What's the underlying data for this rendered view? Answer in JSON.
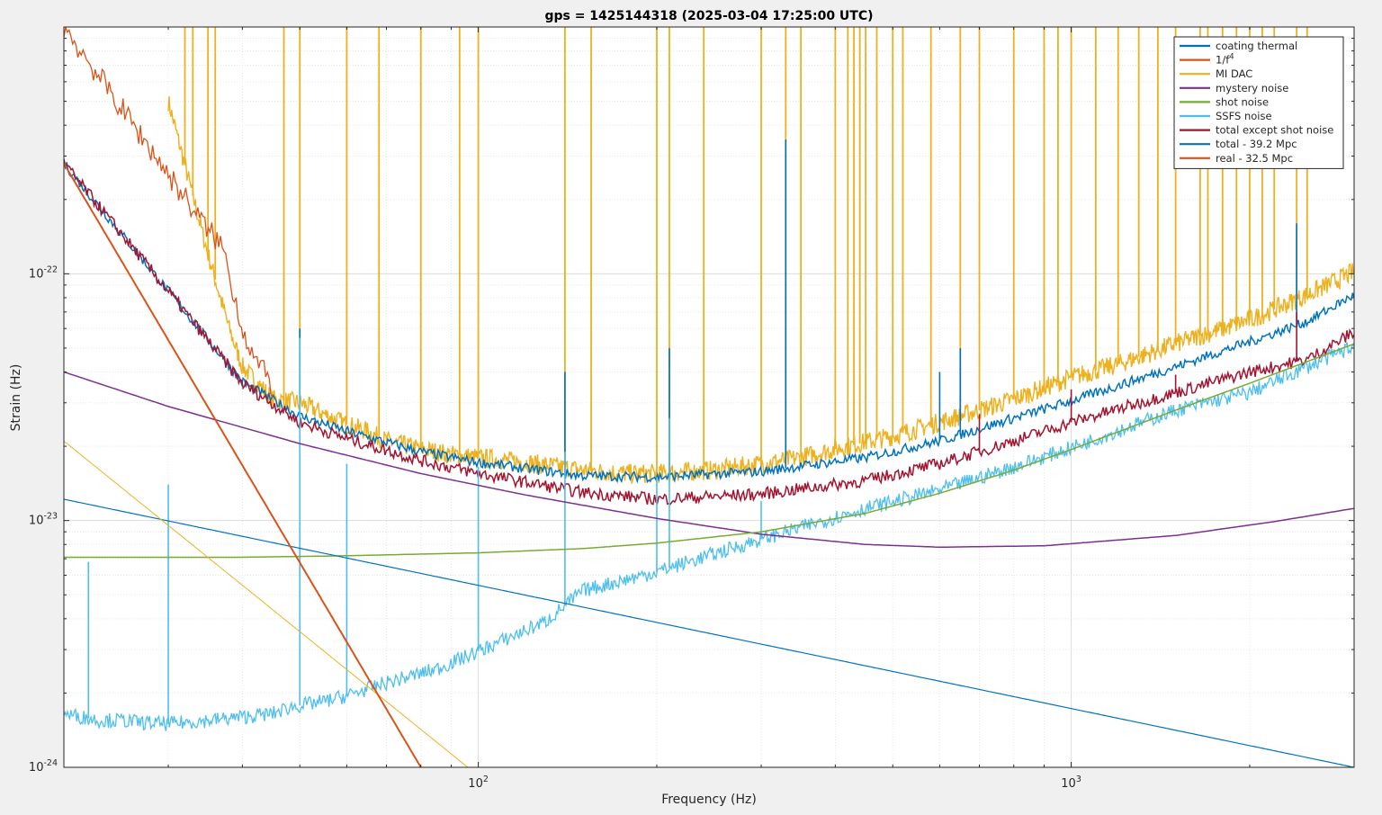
{
  "chart_data": {
    "type": "line",
    "title": "gps = 1425144318 (2025-03-04 17:25:00 UTC)",
    "xlabel": "Frequency (Hz)",
    "ylabel": "Strain (Hz)",
    "xscale": "log",
    "yscale": "log",
    "xlim": [
      20,
      3000
    ],
    "ylim": [
      1e-24,
      1e-21
    ],
    "grid": true,
    "legend_position": "top-right",
    "x_tick_labels": [
      {
        "value": 100,
        "base": "10",
        "exp": "2"
      },
      {
        "value": 1000,
        "base": "10",
        "exp": "3"
      }
    ],
    "y_tick_labels": [
      {
        "value": 1e-24,
        "base": "10",
        "exp": "-24"
      },
      {
        "value": 1e-23,
        "base": "10",
        "exp": "-23"
      },
      {
        "value": 1e-22,
        "base": "10",
        "exp": "-22"
      }
    ],
    "series": [
      {
        "name": "coating thermal",
        "color": "#0072BD",
        "width": 1.2,
        "x": [
          20,
          3000
        ],
        "y": [
          1.22e-23,
          1e-24
        ]
      },
      {
        "name": "1/f^4",
        "color": "#D95319",
        "width": 2,
        "x": [
          20,
          80
        ],
        "y": [
          2.8e-22,
          1e-24
        ]
      },
      {
        "name": "MI DAC",
        "color": "#EDB120",
        "width": 1,
        "x": [
          20,
          96
        ],
        "y": [
          2.1e-23,
          1e-24
        ]
      },
      {
        "name": "mystery noise",
        "color": "#7E2F8E",
        "width": 1.5,
        "x": [
          20,
          30,
          50,
          80,
          120,
          200,
          300,
          450,
          600,
          900,
          1500,
          2200,
          3000
        ],
        "y": [
          4e-23,
          2.9e-23,
          2.05e-23,
          1.55e-23,
          1.27e-23,
          1.02e-23,
          8.8e-24,
          8e-24,
          7.8e-24,
          7.9e-24,
          8.7e-24,
          9.9e-24,
          1.12e-23
        ]
      },
      {
        "name": "shot noise",
        "color": "#77AC30",
        "width": 1.5,
        "x": [
          20,
          40,
          60,
          100,
          150,
          200,
          300,
          450,
          600,
          800,
          1000,
          1500,
          2000,
          3000
        ],
        "y": [
          7.1e-24,
          7.1e-24,
          7.2e-24,
          7.4e-24,
          7.7e-24,
          8.1e-24,
          9e-24,
          1.07e-23,
          1.29e-23,
          1.6e-23,
          1.94e-23,
          2.8e-23,
          3.6e-23,
          5.2e-23
        ]
      },
      {
        "name": "SSFS noise",
        "color": "#4DBEEE",
        "width": 1.2,
        "x": [
          20,
          23,
          25,
          27,
          30,
          35,
          40,
          45,
          48,
          55,
          60,
          70,
          85,
          100,
          130,
          150,
          200,
          300,
          450,
          600,
          800,
          1000,
          1500,
          2000,
          3000
        ],
        "y": [
          1.65e-24,
          1.55e-24,
          1.55e-24,
          1.52e-24,
          1.5e-24,
          1.55e-24,
          1.6e-24,
          1.65e-24,
          1.75e-24,
          1.85e-24,
          1.95e-24,
          2.2e-24,
          2.5e-24,
          2.95e-24,
          3.9e-24,
          5.2e-24,
          6.2e-24,
          8.4e-24,
          1.12e-23,
          1.33e-23,
          1.65e-23,
          1.97e-23,
          2.8e-23,
          3.3e-23,
          5.1e-23
        ],
        "peaks": [
          {
            "x": 22,
            "y": 6.8e-24
          },
          {
            "x": 30,
            "y": 1.4e-23
          },
          {
            "x": 50,
            "y": 5.5e-23
          },
          {
            "x": 60,
            "y": 1.7e-23
          },
          {
            "x": 100,
            "y": 1.65e-23
          },
          {
            "x": 140,
            "y": 1.9e-23
          },
          {
            "x": 200,
            "y": 1.5e-23
          },
          {
            "x": 210,
            "y": 2.6e-23
          },
          {
            "x": 300,
            "y": 1.2e-23
          }
        ]
      },
      {
        "name": "total except shot noise",
        "color": "#A2142F",
        "width": 1.5,
        "x": [
          20,
          30,
          40,
          50,
          60,
          80,
          100,
          150,
          200,
          300,
          450,
          600,
          800,
          1000,
          1500,
          2000,
          2500,
          3000
        ],
        "y": [
          2.8e-22,
          8.5e-23,
          3.6e-23,
          2.5e-23,
          2.15e-23,
          1.75e-23,
          1.55e-23,
          1.3e-23,
          1.22e-23,
          1.28e-23,
          1.45e-23,
          1.7e-23,
          2.1e-23,
          2.5e-23,
          3.3e-23,
          4e-23,
          4.5e-23,
          5.8e-23
        ]
      },
      {
        "name": "total - 39.2 Mpc",
        "color": "#0072BD",
        "width": 1.5,
        "x": [
          20,
          30,
          40,
          50,
          60,
          80,
          100,
          150,
          200,
          300,
          450,
          600,
          800,
          1000,
          1500,
          2000,
          2500,
          3000
        ],
        "y": [
          2.8e-22,
          8.5e-23,
          3.65e-23,
          2.65e-23,
          2.3e-23,
          1.9e-23,
          1.72e-23,
          1.52e-23,
          1.5e-23,
          1.58e-23,
          1.8e-23,
          2.1e-23,
          2.6e-23,
          3.05e-23,
          4.2e-23,
          5.3e-23,
          6.4e-23,
          8.2e-23
        ]
      },
      {
        "name": "real - 32.5 Mpc",
        "color": "#D95319",
        "width": 1.2,
        "x": [
          20,
          35,
          37,
          40,
          42,
          45
        ],
        "y": [
          1e-21,
          1.5e-22,
          1.3e-22,
          6e-23,
          4.5e-23,
          3.5e-23
        ]
      }
    ],
    "mi_dac_trace": {
      "color": "#EDB120",
      "x": [
        30,
        35,
        38,
        40,
        45,
        50,
        55,
        60,
        65,
        70,
        80,
        90,
        100,
        120,
        150,
        180,
        200,
        250,
        300,
        350,
        400,
        500,
        600,
        700,
        800,
        1000,
        1200,
        1500,
        2000,
        2500,
        3000
      ],
      "y": [
        5e-22,
        1.2e-22,
        6e-23,
        4.2e-23,
        3.1e-23,
        3e-23,
        2.7e-23,
        2.45e-23,
        2.3e-23,
        2.1e-23,
        1.95e-23,
        1.85e-23,
        1.8e-23,
        1.72e-23,
        1.6e-23,
        1.55e-23,
        1.55e-23,
        1.6e-23,
        1.7e-23,
        1.8e-23,
        1.95e-23,
        2.2e-23,
        2.5e-23,
        2.8e-23,
        3.1e-23,
        3.8e-23,
        4.3e-23,
        5.2e-23,
        6.5e-23,
        8.2e-23,
        1.02e-22
      ],
      "lines_x": [
        27.5,
        28,
        29,
        32,
        33,
        35,
        36,
        47,
        50,
        60,
        68,
        80,
        93,
        100,
        140,
        155,
        200,
        210,
        240,
        300,
        330,
        350,
        400,
        420,
        430,
        440,
        450,
        470,
        500,
        520,
        580,
        650,
        700,
        800,
        900,
        950,
        1000,
        1100,
        1200,
        1300,
        1400,
        1500,
        1650,
        1700,
        1800,
        1900,
        2000,
        2100,
        2200,
        2400,
        2500
      ]
    },
    "legend_entries": [
      {
        "label": "coating thermal",
        "sup": "",
        "color": "#0072BD"
      },
      {
        "label": "1/f",
        "sup": "4",
        "color": "#D95319"
      },
      {
        "label": "MI DAC",
        "sup": "",
        "color": "#EDB120"
      },
      {
        "label": "mystery noise",
        "sup": "",
        "color": "#7E2F8E"
      },
      {
        "label": "shot noise",
        "sup": "",
        "color": "#77AC30"
      },
      {
        "label": "SSFS noise",
        "sup": "",
        "color": "#4DBEEE"
      },
      {
        "label": "total except shot noise",
        "sup": "",
        "color": "#A2142F"
      },
      {
        "label": "total - 39.2 Mpc",
        "sup": "",
        "color": "#0072BD"
      },
      {
        "label": "real - 32.5 Mpc",
        "sup": "",
        "color": "#D95319"
      }
    ]
  }
}
